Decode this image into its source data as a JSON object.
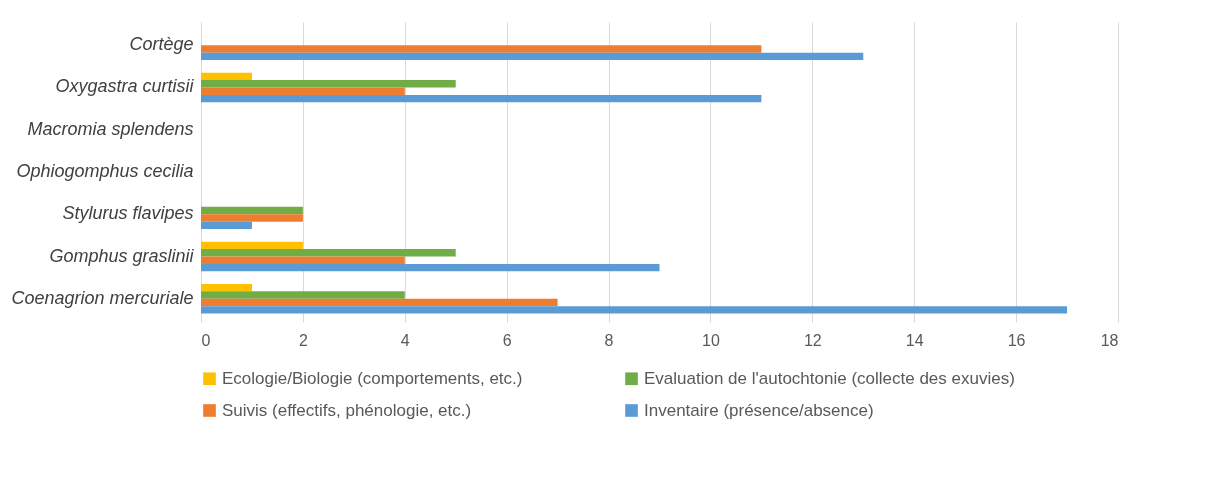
{
  "chart_data": {
    "type": "bar",
    "orientation": "horizontal",
    "categories": [
      "Cortège",
      "Oxygastra curtisii",
      "Macromia splendens",
      "Ophiogomphus cecilia",
      "Stylurus flavipes",
      "Gomphus graslinii",
      "Coenagrion mercuriale"
    ],
    "series": [
      {
        "name": "Ecologie/Biologie (comportements, etc.)",
        "color": "#ffc000",
        "values": [
          0,
          1,
          0,
          0,
          0,
          2,
          1
        ]
      },
      {
        "name": "Evaluation de l'autochtonie (collecte des exuvies)",
        "color": "#70ad47",
        "values": [
          0,
          5,
          0,
          0,
          2,
          5,
          4
        ]
      },
      {
        "name": "Suivis (effectifs, phénologie, etc.)",
        "color": "#ed7d31",
        "values": [
          11,
          4,
          0,
          0,
          2,
          4,
          7
        ]
      },
      {
        "name": "Inventaire (présence/absence)",
        "color": "#5b9bd5",
        "values": [
          13,
          11,
          0,
          0,
          1,
          9,
          17
        ]
      }
    ],
    "xlim": [
      0,
      18
    ],
    "xticks": [
      0,
      2,
      4,
      6,
      8,
      10,
      12,
      14,
      16,
      18
    ],
    "grid": "x",
    "legend": "bottom"
  }
}
